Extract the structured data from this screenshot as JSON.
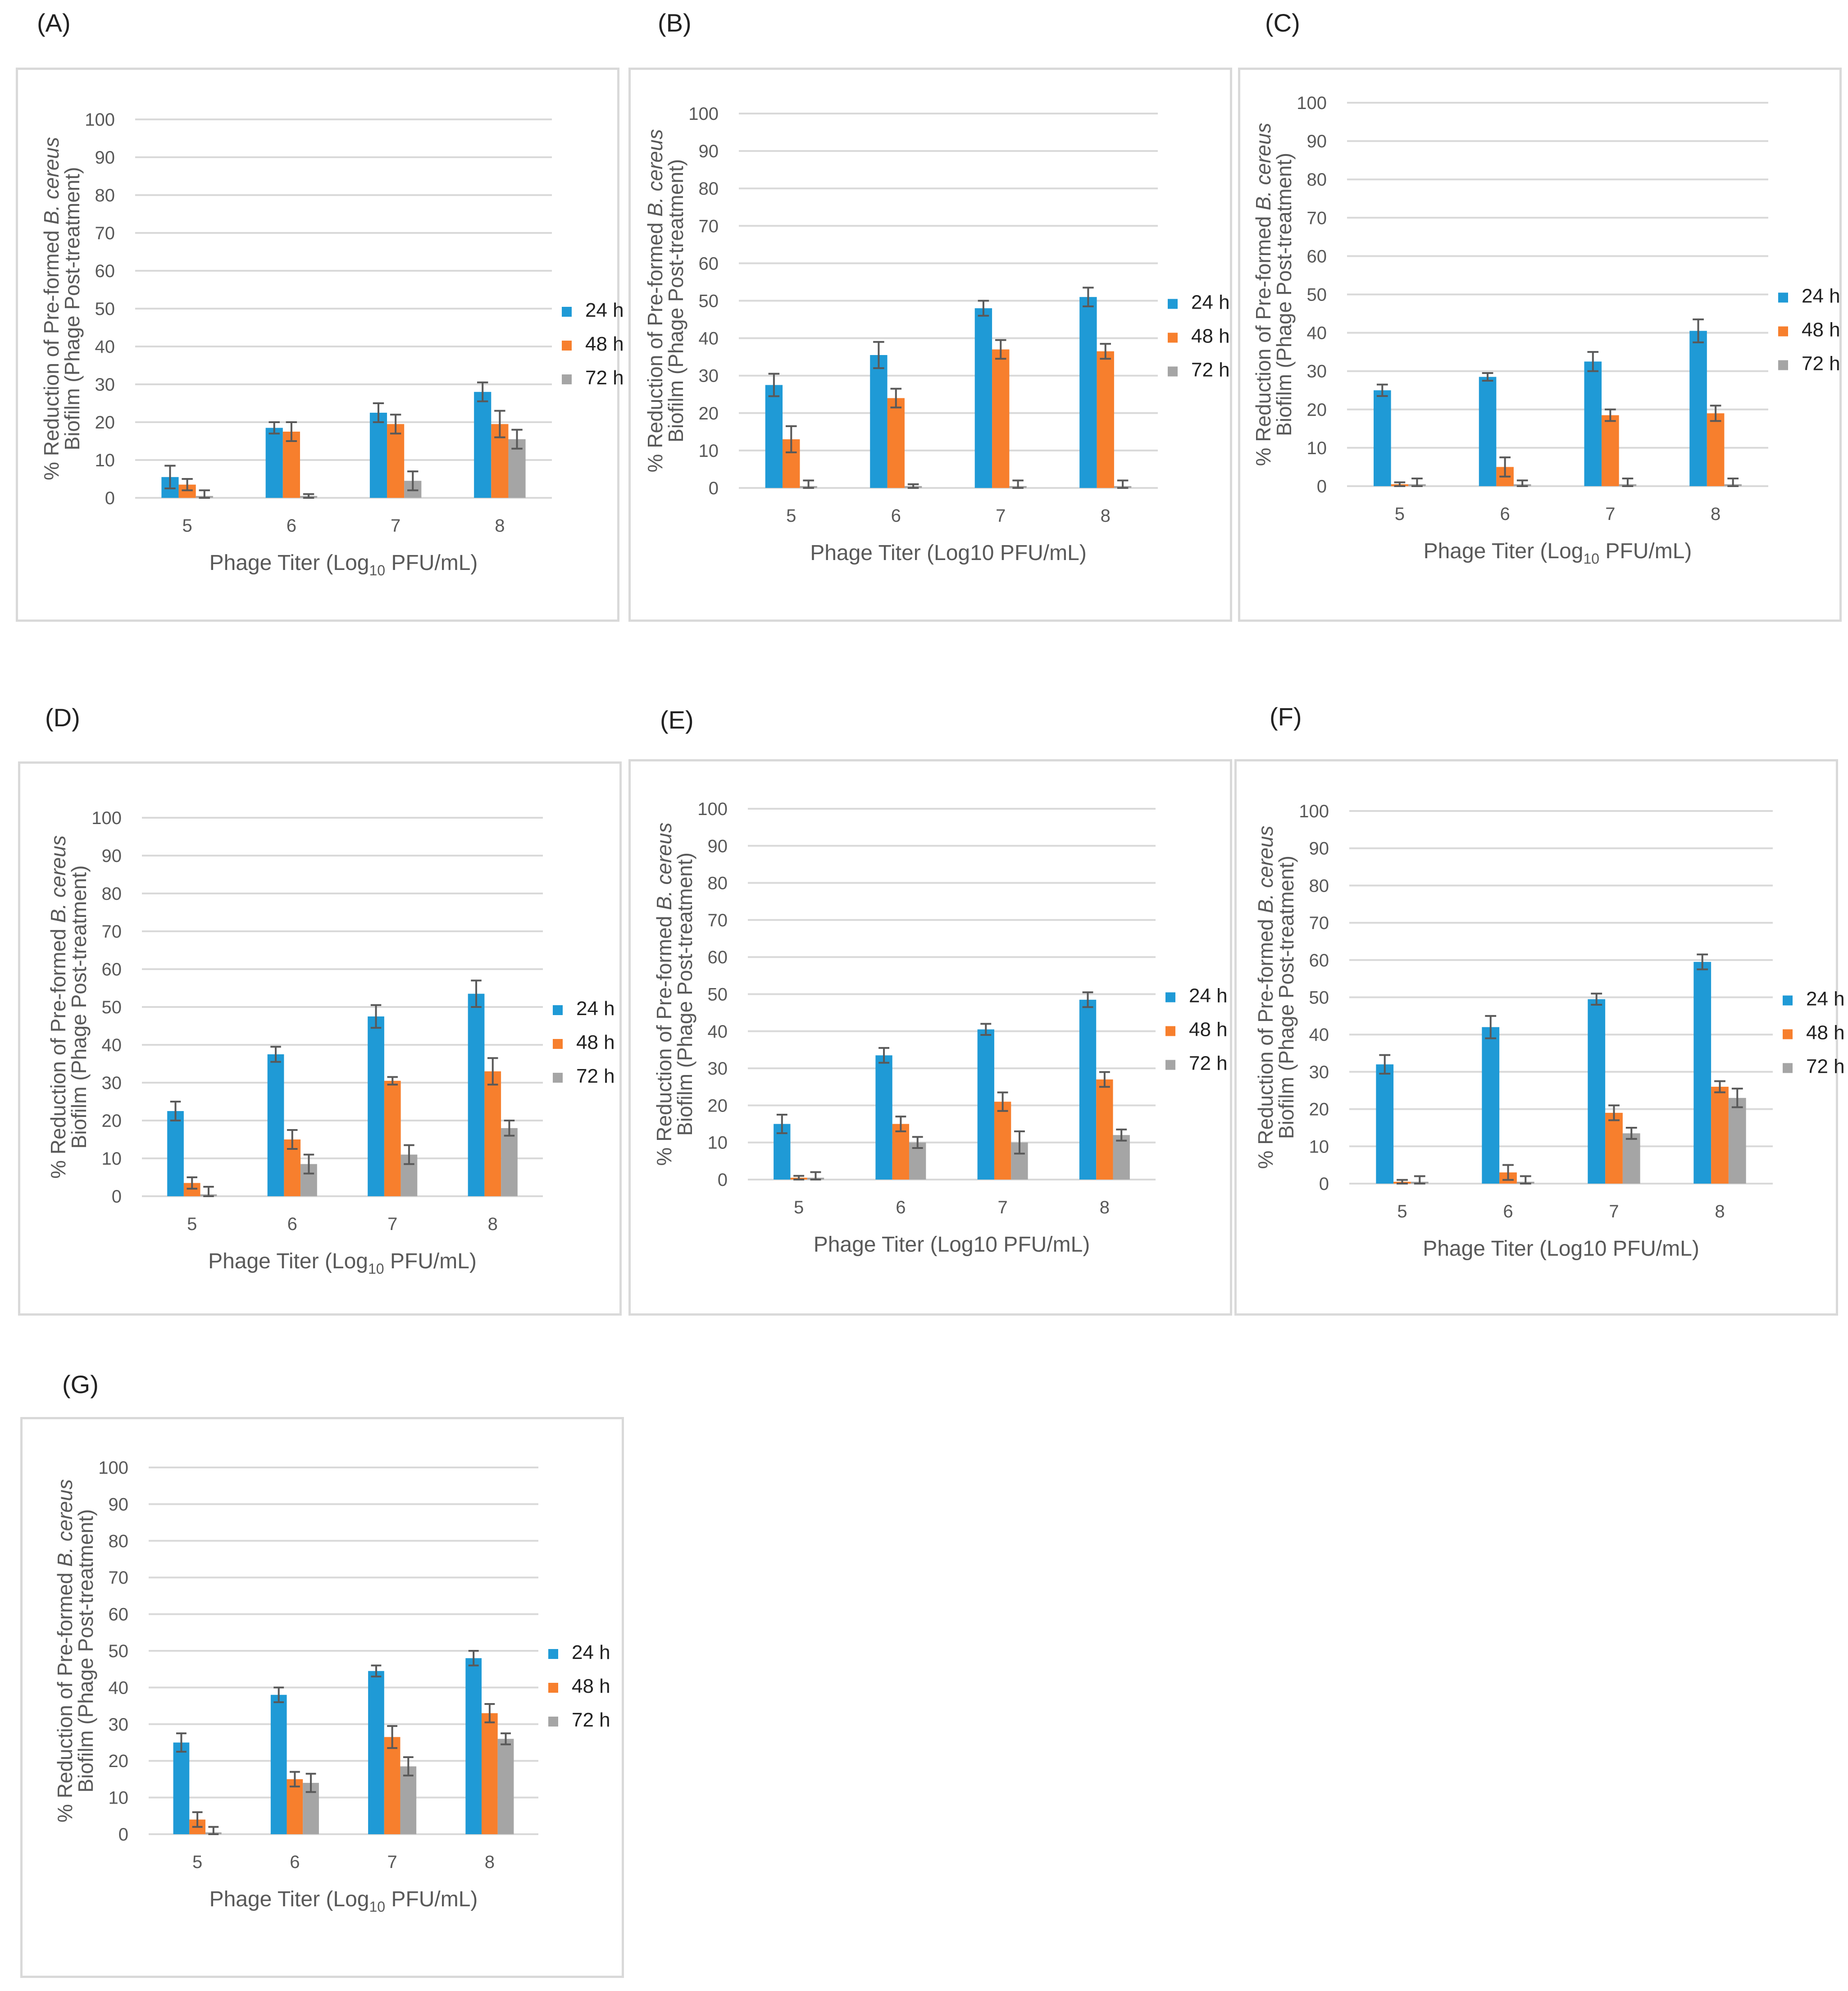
{
  "colors": {
    "24h": "#1f9ad6",
    "48h": "#f77f2d",
    "72h": "#a5a5a5",
    "grid": "#d9d9d9",
    "error": "#595959"
  },
  "chart_data": [
    {
      "id": "A",
      "type": "bar",
      "label": "(A)",
      "categories": [
        "5",
        "6",
        "7",
        "8"
      ],
      "series": [
        {
          "name": "24 h",
          "values": [
            5.5,
            18.5,
            22.5,
            28
          ],
          "errors": [
            3,
            1.5,
            2.5,
            2.5
          ]
        },
        {
          "name": "48 h",
          "values": [
            3.5,
            17.5,
            19.5,
            19.5
          ],
          "errors": [
            1.5,
            2.5,
            2.5,
            3.5
          ]
        },
        {
          "name": "72 h",
          "values": [
            0.5,
            0.5,
            4.5,
            15.5
          ],
          "errors": [
            1.5,
            0.5,
            2.5,
            2.5
          ]
        }
      ],
      "ylim": [
        0,
        100
      ],
      "yticks": [
        0,
        10,
        20,
        30,
        40,
        50,
        60,
        70,
        80,
        90,
        100
      ],
      "xlabel": "Phage Titer (Log10 PFU/mL)",
      "xlabel_sub": true,
      "ylabel_line1": "% Reduction of  Pre-formed B. cereus",
      "ylabel_line2": "Biofilm  (Phage Post-treatment)"
    },
    {
      "id": "B",
      "type": "bar",
      "label": "(B)",
      "categories": [
        "5",
        "6",
        "7",
        "8"
      ],
      "series": [
        {
          "name": "24 h",
          "values": [
            27.5,
            35.5,
            48,
            51
          ],
          "errors": [
            3,
            3.5,
            2,
            2.5
          ]
        },
        {
          "name": "48 h",
          "values": [
            13,
            24,
            37,
            36.5
          ],
          "errors": [
            3.5,
            2.5,
            2.5,
            2
          ]
        },
        {
          "name": "72 h",
          "values": [
            0.5,
            0.5,
            0.5,
            0.5
          ],
          "errors": [
            1.5,
            0.5,
            1.5,
            1.5
          ]
        }
      ],
      "ylim": [
        0,
        100
      ],
      "yticks": [
        0,
        10,
        20,
        30,
        40,
        50,
        60,
        70,
        80,
        90,
        100
      ],
      "xlabel": "Phage Titer (Log10 PFU/mL)",
      "xlabel_sub": false,
      "ylabel_line1": "% Reduction of  Pre-formed B. cereus",
      "ylabel_line2": "Biofilm  (Phage Post-treatment)"
    },
    {
      "id": "C",
      "type": "bar",
      "label": "(C)",
      "categories": [
        "5",
        "6",
        "7",
        "8"
      ],
      "series": [
        {
          "name": "24 h",
          "values": [
            25,
            28.5,
            32.5,
            40.5
          ],
          "errors": [
            1.5,
            1,
            2.5,
            3
          ]
        },
        {
          "name": "48 h",
          "values": [
            0.5,
            5,
            18.5,
            19
          ],
          "errors": [
            0.5,
            2.5,
            1.5,
            2
          ]
        },
        {
          "name": "72 h",
          "values": [
            0.5,
            0.5,
            0.5,
            0.5
          ],
          "errors": [
            1.5,
            1,
            1.5,
            1.5
          ]
        }
      ],
      "ylim": [
        0,
        100
      ],
      "yticks": [
        0,
        10,
        20,
        30,
        40,
        50,
        60,
        70,
        80,
        90,
        100
      ],
      "xlabel": "Phage Titer (Log10 PFU/mL)",
      "xlabel_sub": true,
      "ylabel_line1": "% Reduction of  Pre-formed B. cereus",
      "ylabel_line2": "Biofilm  (Phage Post-treatment)"
    },
    {
      "id": "D",
      "type": "bar",
      "label": "(D)",
      "categories": [
        "5",
        "6",
        "7",
        "8"
      ],
      "series": [
        {
          "name": "24 h",
          "values": [
            22.5,
            37.5,
            47.5,
            53.5
          ],
          "errors": [
            2.5,
            2,
            3,
            3.5
          ]
        },
        {
          "name": "48 h",
          "values": [
            3.5,
            15,
            30.5,
            33
          ],
          "errors": [
            1.5,
            2.5,
            1,
            3.5
          ]
        },
        {
          "name": "72 h",
          "values": [
            0.5,
            8.5,
            11,
            18
          ],
          "errors": [
            2,
            2.5,
            2.5,
            2
          ]
        }
      ],
      "ylim": [
        0,
        100
      ],
      "yticks": [
        0,
        10,
        20,
        30,
        40,
        50,
        60,
        70,
        80,
        90,
        100
      ],
      "xlabel": "Phage Titer (Log10 PFU/mL)",
      "xlabel_sub": true,
      "ylabel_line1": "% Reduction of  Pre-formed B. cereus",
      "ylabel_line2": "Biofilm  (Phage Post-treatment)"
    },
    {
      "id": "E",
      "type": "bar",
      "label": "(E)",
      "categories": [
        "5",
        "6",
        "7",
        "8"
      ],
      "series": [
        {
          "name": "24 h",
          "values": [
            15,
            33.5,
            40.5,
            48.5
          ],
          "errors": [
            2.5,
            2,
            1.5,
            2
          ]
        },
        {
          "name": "48 h",
          "values": [
            0.5,
            15,
            21,
            27
          ],
          "errors": [
            0.5,
            2,
            2.5,
            2
          ]
        },
        {
          "name": "72 h",
          "values": [
            0.5,
            10,
            10,
            12
          ],
          "errors": [
            1.5,
            1.5,
            3,
            1.5
          ]
        }
      ],
      "ylim": [
        0,
        100
      ],
      "yticks": [
        0,
        10,
        20,
        30,
        40,
        50,
        60,
        70,
        80,
        90,
        100
      ],
      "xlabel": "Phage Titer (Log10 PFU/mL)",
      "xlabel_sub": false,
      "ylabel_line1": "% Reduction of  Pre-formed B. cereus",
      "ylabel_line2": "Biofilm  (Phage Post-treatment)"
    },
    {
      "id": "F",
      "type": "bar",
      "label": "(F)",
      "categories": [
        "5",
        "6",
        "7",
        "8"
      ],
      "series": [
        {
          "name": "24 h",
          "values": [
            32,
            42,
            49.5,
            59.5
          ],
          "errors": [
            2.5,
            3,
            1.5,
            2
          ]
        },
        {
          "name": "48 h",
          "values": [
            0.5,
            3,
            19,
            26
          ],
          "errors": [
            0.5,
            2,
            2,
            1.5
          ]
        },
        {
          "name": "72 h",
          "values": [
            0.5,
            0.5,
            13.5,
            23
          ],
          "errors": [
            1.5,
            1.5,
            1.5,
            2.5
          ]
        }
      ],
      "ylim": [
        0,
        100
      ],
      "yticks": [
        0,
        10,
        20,
        30,
        40,
        50,
        60,
        70,
        80,
        90,
        100
      ],
      "xlabel": "Phage Titer (Log10 PFU/mL)",
      "xlabel_sub": false,
      "ylabel_line1": "% Reduction of  Pre-formed B. cereus",
      "ylabel_line2": "Biofilm  (Phage Post-treatment)"
    },
    {
      "id": "G",
      "type": "bar",
      "label": "(G)",
      "categories": [
        "5",
        "6",
        "7",
        "8"
      ],
      "series": [
        {
          "name": "24 h",
          "values": [
            25,
            38,
            44.5,
            48
          ],
          "errors": [
            2.5,
            2,
            1.5,
            2
          ]
        },
        {
          "name": "48 h",
          "values": [
            4,
            15,
            26.5,
            33
          ],
          "errors": [
            2,
            2,
            3,
            2.5
          ]
        },
        {
          "name": "72 h",
          "values": [
            0.5,
            14,
            18.5,
            26
          ],
          "errors": [
            1.5,
            2.5,
            2.5,
            1.5
          ]
        }
      ],
      "ylim": [
        0,
        100
      ],
      "yticks": [
        0,
        10,
        20,
        30,
        40,
        50,
        60,
        70,
        80,
        90,
        100
      ],
      "xlabel": "Phage Titer (Log10 PFU/mL)",
      "xlabel_sub": true,
      "ylabel_line1": "% Reduction of  Pre-formed B. cereus",
      "ylabel_line2": "Biofilm  (Phage Post-treatment)"
    }
  ]
}
